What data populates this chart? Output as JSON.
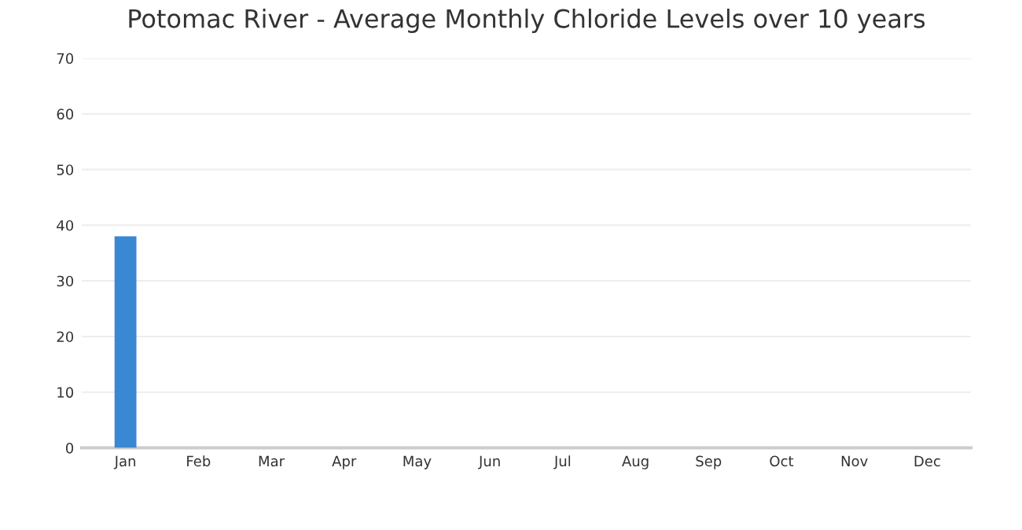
{
  "chart_data": {
    "type": "bar",
    "title": "Potomac River - Average Monthly Chloride Levels over 10 years",
    "categories": [
      "Jan",
      "Feb",
      "Mar",
      "Apr",
      "May",
      "Jun",
      "Jul",
      "Aug",
      "Sep",
      "Oct",
      "Nov",
      "Dec"
    ],
    "values": [
      38,
      null,
      null,
      null,
      null,
      null,
      null,
      null,
      null,
      null,
      null,
      null
    ],
    "color": "#3a87d4",
    "ylim": [
      0,
      70
    ],
    "yticks": [
      0,
      10,
      20,
      30,
      40,
      50,
      60,
      70
    ],
    "grid": "y"
  }
}
